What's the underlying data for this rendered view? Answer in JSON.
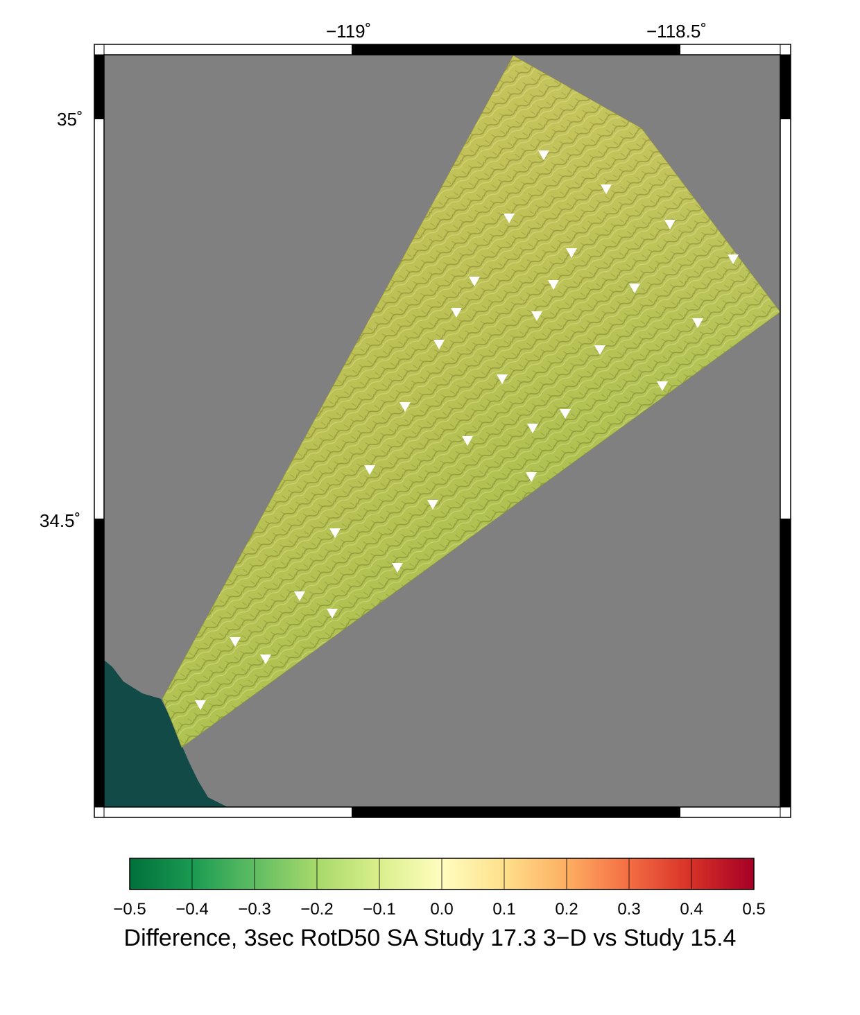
{
  "map": {
    "x_axis_labels": [
      "−119˚",
      "−118.5˚"
    ],
    "y_axis_labels": [
      "35˚",
      "34.5˚"
    ],
    "colors": {
      "background": "#808080",
      "ocean": "#124a47",
      "marker": "#ffffff",
      "frame": "#000000"
    },
    "stations_shown": 29
  },
  "colorbar": {
    "ticks": [
      "−0.5",
      "−0.4",
      "−0.3",
      "−0.2",
      "−0.1",
      "0.0",
      "0.1",
      "0.2",
      "0.3",
      "0.4",
      "0.5"
    ],
    "range": [
      -0.5,
      0.5
    ],
    "colors": [
      "#00703a",
      "#1a9a52",
      "#5fbd62",
      "#a7d96a",
      "#d9ef8b",
      "#fffdbf",
      "#fee08b",
      "#fdae61",
      "#f46d43",
      "#d73027",
      "#a50026"
    ],
    "title": "Difference, 3sec RotD50 SA Study 17.3 3−D vs Study 15.4"
  }
}
